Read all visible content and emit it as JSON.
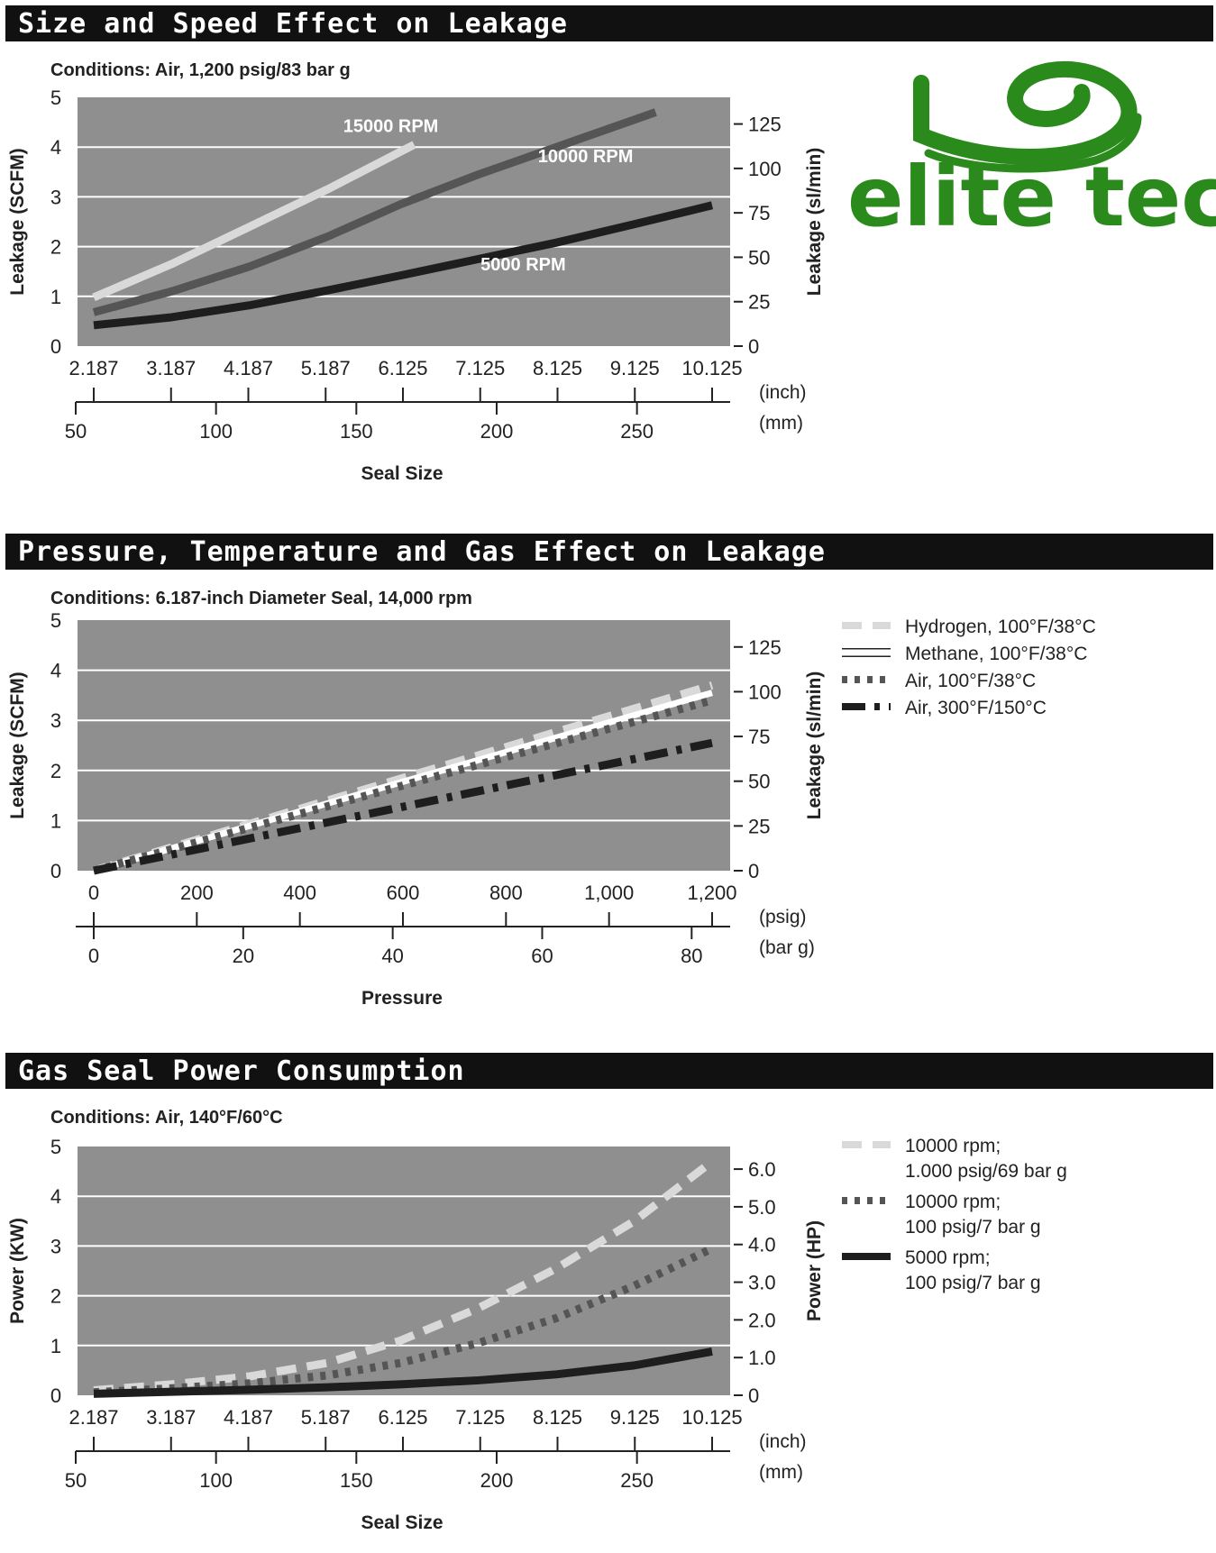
{
  "logo": {
    "text": "elite tech"
  },
  "colors": {
    "plot_bg": "#8f8f8f",
    "header_bg": "#111111",
    "logo_green": "#2b8a1c"
  },
  "chart_data": [
    {
      "type": "line",
      "title": "Size and Speed Effect on Leakage",
      "subtitle": "Conditions: Air, 1,200 psig/83 bar g",
      "xlabel": "Seal Size",
      "ylabel": "Leakage (SCFM)",
      "ylabel_right": "Leakage (sl/min)",
      "x_unit_top": "(inch)",
      "x_unit_bottom": "(mm)",
      "xlim": [
        2.187,
        10.125
      ],
      "ylim": [
        0,
        5
      ],
      "x_ticks_top": [
        "2.187",
        "3.187",
        "4.187",
        "5.187",
        "6.125",
        "7.125",
        "8.125",
        "9.125",
        "10.125"
      ],
      "x_ticks_bottom": [
        "50",
        "100",
        "150",
        "200",
        "250"
      ],
      "y_ticks": [
        "0",
        "1",
        "2",
        "3",
        "4",
        "5"
      ],
      "y_ticks_right": [
        "0",
        "25",
        "50",
        "75",
        "100",
        "125"
      ],
      "grid": true,
      "series": [
        {
          "name": "15000 RPM",
          "color": "#d9d9d9",
          "style": "solid",
          "label_pos": [
            6.0,
            4.3
          ],
          "x": [
            2.187,
            3.187,
            4.187,
            5.187,
            6.3
          ],
          "y": [
            0.98,
            1.65,
            2.4,
            3.15,
            4.05
          ]
        },
        {
          "name": "10000 RPM",
          "color": "#555555",
          "style": "solid",
          "label_pos": [
            8.5,
            3.7
          ],
          "x": [
            2.187,
            3.187,
            4.187,
            5.187,
            6.125,
            7.125,
            8.125,
            9.125,
            9.4
          ],
          "y": [
            0.68,
            1.1,
            1.6,
            2.2,
            2.85,
            3.45,
            4.0,
            4.55,
            4.7
          ]
        },
        {
          "name": "5000 RPM",
          "color": "#1e1e1e",
          "style": "solid",
          "label_pos": [
            7.7,
            1.52
          ],
          "x": [
            2.187,
            3.187,
            4.187,
            5.187,
            6.125,
            7.125,
            8.125,
            9.125,
            10.125
          ],
          "y": [
            0.42,
            0.58,
            0.82,
            1.12,
            1.42,
            1.75,
            2.08,
            2.45,
            2.83
          ]
        }
      ]
    },
    {
      "type": "line",
      "title": "Pressure, Temperature and Gas Effect on Leakage",
      "subtitle": "Conditions: 6.187-inch Diameter Seal, 14,000 rpm",
      "xlabel": "Pressure",
      "ylabel": "Leakage (SCFM)",
      "ylabel_right": "Leakage (sl/min)",
      "x_unit_top": "(psig)",
      "x_unit_bottom": "(bar g)",
      "xlim": [
        0,
        1200
      ],
      "ylim": [
        0,
        5
      ],
      "x_ticks_top": [
        "0",
        "200",
        "400",
        "600",
        "800",
        "1,000",
        "1,200"
      ],
      "x_ticks_bottom": [
        "0",
        "20",
        "40",
        "60",
        "80"
      ],
      "y_ticks": [
        "0",
        "1",
        "2",
        "3",
        "4",
        "5"
      ],
      "y_ticks_right": [
        "0",
        "25",
        "50",
        "75",
        "100",
        "125"
      ],
      "grid": true,
      "series": [
        {
          "name": "Hydrogen, 100°F/38°C",
          "color": "#d9d9d9",
          "style": "dashed",
          "x": [
            0,
            1200
          ],
          "y": [
            0,
            3.7
          ]
        },
        {
          "name": "Methane, 100°F/38°C",
          "color": "#ffffff",
          "style": "solid",
          "x": [
            0,
            1200
          ],
          "y": [
            0,
            3.55
          ]
        },
        {
          "name": "Air, 100°F/38°C",
          "color": "#555555",
          "style": "dotted",
          "x": [
            0,
            1200
          ],
          "y": [
            0,
            3.4
          ]
        },
        {
          "name": "Air, 300°F/150°C",
          "color": "#1e1e1e",
          "style": "dashdot",
          "x": [
            0,
            1200
          ],
          "y": [
            0,
            2.55
          ]
        }
      ]
    },
    {
      "type": "line",
      "title": "Gas Seal Power Consumption",
      "subtitle": "Conditions: Air, 140°F/60°C",
      "xlabel": "Seal Size",
      "ylabel": "Power (KW)",
      "ylabel_right": "Power (HP)",
      "x_unit_top": "(inch)",
      "x_unit_bottom": "(mm)",
      "xlim": [
        2.187,
        10.125
      ],
      "ylim": [
        0,
        5
      ],
      "x_ticks_top": [
        "2.187",
        "3.187",
        "4.187",
        "5.187",
        "6.125",
        "7.125",
        "8.125",
        "9.125",
        "10.125"
      ],
      "x_ticks_bottom": [
        "50",
        "100",
        "150",
        "200",
        "250"
      ],
      "y_ticks": [
        "0",
        "1",
        "2",
        "3",
        "4",
        "5"
      ],
      "y_ticks_right": [
        "0",
        "1.0",
        "2.0",
        "3.0",
        "4.0",
        "5.0",
        "6.0"
      ],
      "grid": true,
      "series": [
        {
          "name": "10000 rpm;",
          "name2": "1.000 psig/69 bar g",
          "color": "#d9d9d9",
          "style": "dashed",
          "x": [
            2.187,
            3.187,
            4.187,
            5.187,
            6.125,
            7.125,
            8.125,
            9.125,
            10.125
          ],
          "y": [
            0.1,
            0.22,
            0.38,
            0.65,
            1.1,
            1.75,
            2.55,
            3.5,
            4.7
          ]
        },
        {
          "name": "10000 rpm;",
          "name2": "100 psig/7 bar g",
          "color": "#555555",
          "style": "dotted",
          "x": [
            2.187,
            3.187,
            4.187,
            5.187,
            6.125,
            7.125,
            8.125,
            9.125,
            10.125
          ],
          "y": [
            0.06,
            0.14,
            0.24,
            0.4,
            0.65,
            1.05,
            1.55,
            2.2,
            2.95
          ]
        },
        {
          "name": "5000 rpm;",
          "name2": "100 psig/7 bar g",
          "color": "#1e1e1e",
          "style": "solid",
          "x": [
            2.187,
            3.187,
            4.187,
            5.187,
            6.125,
            7.125,
            8.125,
            9.125,
            10.125
          ],
          "y": [
            0.03,
            0.07,
            0.11,
            0.16,
            0.22,
            0.3,
            0.42,
            0.6,
            0.88
          ]
        }
      ]
    }
  ]
}
